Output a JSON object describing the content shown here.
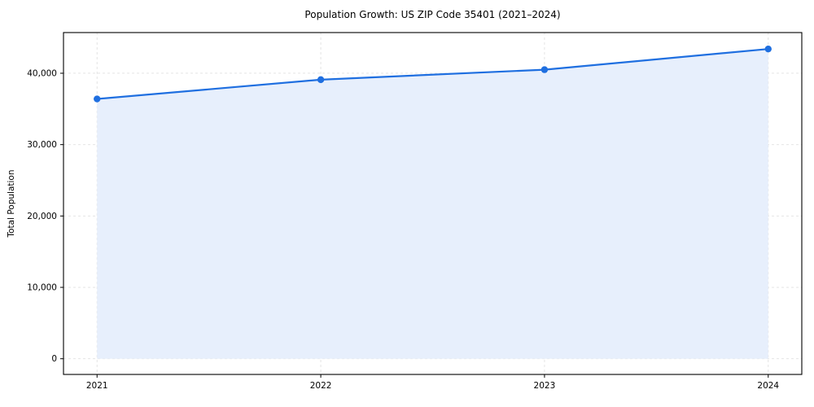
{
  "chart_data": {
    "type": "area",
    "title": "Population Growth: US ZIP Code 35401 (2021–2024)",
    "ylabel": "Total Population",
    "xlabel": "",
    "x": [
      2021,
      2022,
      2023,
      2024
    ],
    "series": [
      {
        "name": "Total Population",
        "values": [
          36400,
          39100,
          40500,
          43400
        ]
      }
    ],
    "xlim": [
      2020.85,
      2024.15
    ],
    "ylim": [
      -2200,
      45700
    ],
    "yticks": [
      0,
      10000,
      20000,
      30000,
      40000
    ],
    "xticks": [
      2021,
      2022,
      2023,
      2024
    ],
    "grid": true,
    "grid_style": "dashed",
    "legend": "none",
    "colors": {
      "line": "#1f6fe0",
      "marker": "#1f6fe0",
      "fill": "#e7effc",
      "grid": "#e0e0e0",
      "spine": "#000000",
      "background": "#ffffff"
    }
  }
}
